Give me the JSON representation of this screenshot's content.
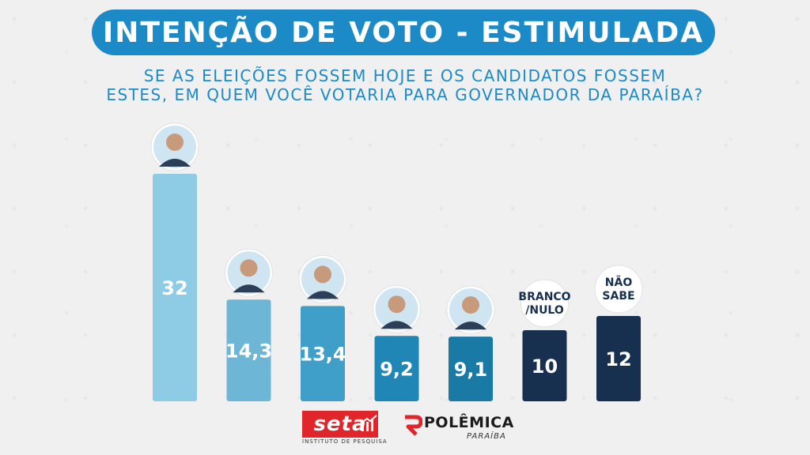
{
  "header": {
    "title": "INTENÇÃO DE VOTO - ESTIMULADA",
    "subtitle_line1": "SE AS ELEIÇÕES FOSSEM HOJE E OS CANDIDATOS FOSSEM",
    "subtitle_line2": "ESTES, EM QUEM VOCÊ VOTARIA PARA GOVERNADOR DA PARAÍBA?"
  },
  "chart_data": {
    "type": "bar",
    "title": "INTENÇÃO DE VOTO - ESTIMULADA",
    "values": [
      32,
      14.3,
      13.4,
      9.2,
      9.1,
      10,
      12
    ],
    "value_labels": [
      "32",
      "14,3",
      "13,4",
      "9,2",
      "9,1",
      "10",
      "12"
    ],
    "category_icons": [
      "candidate-photo",
      "candidate-photo",
      "candidate-photo",
      "candidate-photo",
      "candidate-photo",
      "text-circle",
      "text-circle"
    ],
    "circle_texts": [
      null,
      null,
      null,
      null,
      null,
      [
        "BRANCO",
        "/NULO"
      ],
      [
        "NÃO",
        "SABE"
      ]
    ],
    "colors": [
      "#8ecbe4",
      "#6eb6d6",
      "#3f9fc8",
      "#1f86b5",
      "#1a7aa6",
      "#17304f",
      "#17304f"
    ],
    "xlabel": "",
    "ylabel": "",
    "grid": false
  },
  "footer": {
    "seta_name": "seta",
    "seta_sub": "INSTITUTO DE PESQUISA",
    "polemica_name": "POLÊMICA",
    "polemica_sub": "PARAÍBA"
  }
}
